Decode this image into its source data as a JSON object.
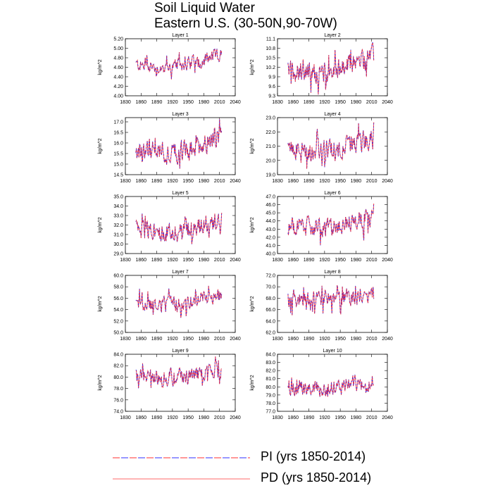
{
  "title": "Soil Liquid Water",
  "subtitle": "Eastern U.S. (30-50N,90-70W)",
  "legend": [
    {
      "label": "PI (yrs 1850-2014)",
      "style": "dashed",
      "colors": [
        "#ff3030",
        "#3030ff"
      ]
    },
    {
      "label": "PD (yrs 1850-2014)",
      "style": "solid",
      "color": "#ff6a6a"
    }
  ],
  "chart_data": [
    {
      "type": "line",
      "title": "Layer 1",
      "ylabel": "kg/m^2",
      "xlim": [
        1830,
        2040
      ],
      "ylim": [
        4.0,
        5.2
      ],
      "xticks": [
        "1830",
        "1860",
        "1890",
        "1920",
        "1950",
        "1980",
        "2010",
        "2040"
      ],
      "yticks": [
        "4.00",
        "4.20",
        "4.40",
        "4.60",
        "4.80",
        "5.00",
        "5.20"
      ],
      "x_range": [
        1850,
        2014
      ],
      "base": [
        4.66,
        4.6,
        4.6,
        4.68,
        4.78,
        4.86
      ],
      "amp": 0.12,
      "series": [
        {
          "name": "PI (yrs 1850-2014)"
        },
        {
          "name": "PD (yrs 1850-2014)"
        }
      ]
    },
    {
      "type": "line",
      "title": "Layer 2",
      "ylabel": "kg/m^2",
      "xlim": [
        1830,
        2040
      ],
      "ylim": [
        9.3,
        11.1
      ],
      "xticks": [
        "1830",
        "1860",
        "1890",
        "1920",
        "1950",
        "1980",
        "2010",
        "2040"
      ],
      "yticks": [
        "9.3",
        "9.6",
        "9.9",
        "10.2",
        "10.5",
        "10.8",
        "11.1"
      ],
      "x_range": [
        1850,
        2014
      ],
      "base": [
        10.1,
        10.05,
        10.0,
        10.1,
        10.35,
        10.55
      ],
      "amp": 0.3,
      "series": [
        {
          "name": "PI (yrs 1850-2014)"
        },
        {
          "name": "PD (yrs 1850-2014)"
        }
      ]
    },
    {
      "type": "line",
      "title": "Layer 3",
      "ylabel": "kg/m^2",
      "xlim": [
        1830,
        2040
      ],
      "ylim": [
        14.5,
        17.2
      ],
      "xticks": [
        "1830",
        "1860",
        "1890",
        "1920",
        "1950",
        "1980",
        "2010",
        "2040"
      ],
      "yticks": [
        "14.5",
        "15.0",
        "15.5",
        "16.0",
        "16.5",
        "17.0"
      ],
      "x_range": [
        1850,
        2014
      ],
      "base": [
        15.6,
        15.6,
        15.5,
        15.6,
        16.0,
        16.3
      ],
      "amp": 0.45,
      "series": [
        {
          "name": "PI (yrs 1850-2014)"
        },
        {
          "name": "PD (yrs 1850-2014)"
        }
      ]
    },
    {
      "type": "line",
      "title": "Layer 4",
      "ylabel": "kg/m^2",
      "xlim": [
        1830,
        2040
      ],
      "ylim": [
        19.0,
        23.0
      ],
      "xticks": [
        "1830",
        "1860",
        "1890",
        "1920",
        "1950",
        "1980",
        "2010",
        "2040"
      ],
      "yticks": [
        "19.0",
        "20.0",
        "21.0",
        "22.0",
        "23.0"
      ],
      "x_range": [
        1850,
        2014
      ],
      "base": [
        20.8,
        20.7,
        20.6,
        20.8,
        21.2,
        21.5
      ],
      "amp": 0.65,
      "series": [
        {
          "name": "PI (yrs 1850-2014)"
        },
        {
          "name": "PD (yrs 1850-2014)"
        }
      ]
    },
    {
      "type": "line",
      "title": "Layer 5",
      "ylabel": "kg/m^2",
      "xlim": [
        1830,
        2040
      ],
      "ylim": [
        29.0,
        35.0
      ],
      "xticks": [
        "1830",
        "1860",
        "1890",
        "1920",
        "1950",
        "1980",
        "2010",
        "2040"
      ],
      "yticks": [
        "29.0",
        "30.0",
        "31.0",
        "32.0",
        "33.0",
        "34.0",
        "35.0"
      ],
      "x_range": [
        1850,
        2014
      ],
      "base": [
        31.6,
        31.4,
        31.2,
        31.5,
        32.2,
        32.6
      ],
      "amp": 0.9,
      "series": [
        {
          "name": "PI (yrs 1850-2014)"
        },
        {
          "name": "PD (yrs 1850-2014)"
        }
      ]
    },
    {
      "type": "line",
      "title": "Layer 6",
      "ylabel": "kg/m^2",
      "xlim": [
        1830,
        2040
      ],
      "ylim": [
        40.0,
        47.0
      ],
      "xticks": [
        "1830",
        "1860",
        "1890",
        "1920",
        "1950",
        "1980",
        "2010",
        "2040"
      ],
      "yticks": [
        "40.0",
        "41.0",
        "42.0",
        "43.0",
        "44.0",
        "45.0",
        "46.0",
        "47.0"
      ],
      "x_range": [
        1850,
        2014
      ],
      "base": [
        43.5,
        43.3,
        43.1,
        43.4,
        44.1,
        44.6
      ],
      "amp": 1.0,
      "series": [
        {
          "name": "PI (yrs 1850-2014)"
        },
        {
          "name": "PD (yrs 1850-2014)"
        }
      ]
    },
    {
      "type": "line",
      "title": "Layer 7",
      "ylabel": "kg/m^2",
      "xlim": [
        1830,
        2040
      ],
      "ylim": [
        50.0,
        60.0
      ],
      "xticks": [
        "1830",
        "1860",
        "1890",
        "1920",
        "1950",
        "1980",
        "2010",
        "2040"
      ],
      "yticks": [
        "50.0",
        "52.0",
        "54.0",
        "56.0",
        "58.0",
        "60.0"
      ],
      "x_range": [
        1850,
        2014
      ],
      "base": [
        55.2,
        55.0,
        54.8,
        55.2,
        56.0,
        56.4
      ],
      "amp": 1.2,
      "series": [
        {
          "name": "PI (yrs 1850-2014)"
        },
        {
          "name": "PD (yrs 1850-2014)"
        }
      ]
    },
    {
      "type": "line",
      "title": "Layer 8",
      "ylabel": "kg/m^2",
      "xlim": [
        1830,
        2040
      ],
      "ylim": [
        62.0,
        72.0
      ],
      "xticks": [
        "1830",
        "1860",
        "1890",
        "1920",
        "1950",
        "1980",
        "2010",
        "2040"
      ],
      "yticks": [
        "62.0",
        "64.0",
        "66.0",
        "68.0",
        "70.0",
        "72.0"
      ],
      "x_range": [
        1850,
        2014
      ],
      "base": [
        68.0,
        68.0,
        67.8,
        68.0,
        68.3,
        68.6
      ],
      "amp": 1.3,
      "series": [
        {
          "name": "PI (yrs 1850-2014)"
        },
        {
          "name": "PD (yrs 1850-2014)"
        }
      ]
    },
    {
      "type": "line",
      "title": "Layer 9",
      "ylabel": "kg/m^2",
      "xlim": [
        1830,
        2040
      ],
      "ylim": [
        74.0,
        84.0
      ],
      "xticks": [
        "1830",
        "1860",
        "1890",
        "1920",
        "1950",
        "1980",
        "2010",
        "2040"
      ],
      "yticks": [
        "74.0",
        "76.0",
        "78.0",
        "80.0",
        "82.0",
        "84.0"
      ],
      "x_range": [
        1850,
        2014
      ],
      "base": [
        80.2,
        80.1,
        79.9,
        80.2,
        80.6,
        81.0
      ],
      "amp": 1.2,
      "series": [
        {
          "name": "PI (yrs 1850-2014)"
        },
        {
          "name": "PD (yrs 1850-2014)"
        }
      ]
    },
    {
      "type": "line",
      "title": "Layer 10",
      "ylabel": "kg/m^2",
      "xlim": [
        1830,
        2040
      ],
      "ylim": [
        77.0,
        84.0
      ],
      "xticks": [
        "1830",
        "1860",
        "1890",
        "1920",
        "1950",
        "1980",
        "2010",
        "2040"
      ],
      "yticks": [
        "77.0",
        "78.0",
        "79.0",
        "80.0",
        "81.0",
        "82.0",
        "83.0",
        "84.0"
      ],
      "x_range": [
        1850,
        2014
      ],
      "base": [
        80.1,
        80.0,
        79.8,
        80.0,
        80.4,
        80.8
      ],
      "amp": 0.9,
      "series": [
        {
          "name": "PI (yrs 1850-2014)"
        },
        {
          "name": "PD (yrs 1850-2014)"
        }
      ]
    }
  ]
}
